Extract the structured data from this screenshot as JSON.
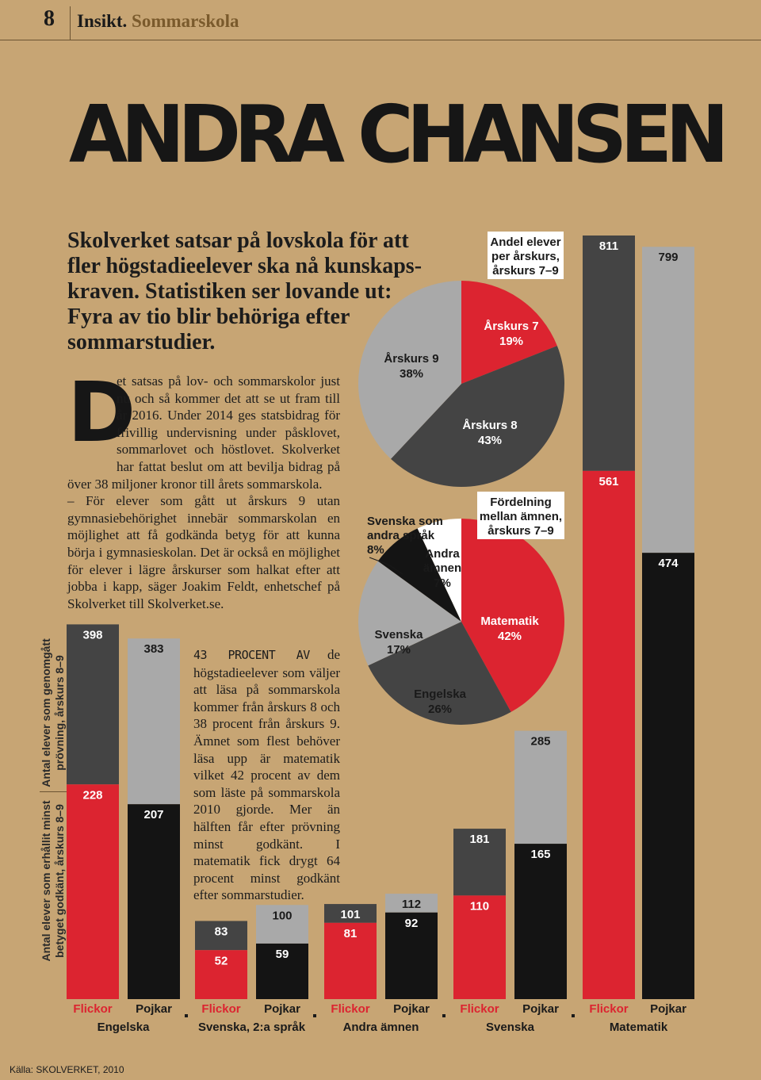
{
  "header": {
    "page_number": "8",
    "section": "Insikt.",
    "subsection": "Sommarskola"
  },
  "title": "ANDRA CHANSEN",
  "lead": "Skolverket satsar på lovskola för att fler högstadieelever ska nå kunskaps-kraven. Statistiken ser lovande ut: Fyra av tio blir behöriga efter sommarstudier.",
  "body": {
    "drop_cap": "D",
    "p1": "et satsas på lov- och sommarskolor just nu och så kommer det att se ut fram till år 2016. Under 2014 ges statsbidrag för frivillig undervisning under påsklovet, sommarlovet och höstlovet. Skolverket har fattat beslut om att bevilja bidrag på över 38 miljoner kronor till årets sommarskola.",
    "p2": "– För elever som gått ut årskurs 9 utan gymnasiebehörighet innebär sommarskolan en möjlighet att få godkända betyg för att kunna börja i gymnasieskolan. Det är också en möjlighet för elever i lägre årskurser som halkat efter att jobba i kapp, säger Joakim Feldt, enhetschef på Skolverket till Skolverket.se.",
    "p3_caps": "43 PROCENT AV",
    "p3": " de högstadieelever som väljer att läsa på sommarskola kommer från årskurs 8 och 38 procent från årskurs 9. Ämnet som flest behöver läsa upp är matematik vilket 42 procent av dem som läste på sommarskola 2010 gjorde. Mer än hälften får efter prövning minst godkänt. I matematik fick drygt 64 procent minst godkänt efter sommarstudier."
  },
  "axis_labels": {
    "top": "Antal elever som genomgått prövning, årskurs 8–9",
    "bottom": "Antal elever som erhållit minst betyget godkänt, årskurs 8–9"
  },
  "source": "Källa: SKOLVERKET, 2010",
  "colors": {
    "background": "#c7a574",
    "red": "#dc2430",
    "dark_grey": "#444444",
    "light_grey": "#a9a9a9",
    "black": "#141414",
    "white": "#ffffff"
  },
  "chart_data": [
    {
      "type": "bar",
      "title": "",
      "groups": [
        "Engelska",
        "Svenska, 2:a språk",
        "Andra ämnen",
        "Svenska",
        "Matematik"
      ],
      "genders": [
        "Flickor",
        "Pojkar"
      ],
      "series": [
        {
          "name": "Antal elever som genomgått prövning, årskurs 8–9",
          "values": [
            398,
            383,
            83,
            100,
            101,
            112,
            181,
            285,
            811,
            799
          ]
        },
        {
          "name": "Antal elever som erhållit minst betyget godkänt, årskurs 8–9",
          "values": [
            228,
            207,
            52,
            59,
            81,
            92,
            110,
            165,
            561,
            474
          ]
        }
      ],
      "ylim": [
        0,
        811
      ]
    },
    {
      "type": "pie",
      "title": "Andel elever per årskurs, årskurs 7–9",
      "labels": [
        "Årskurs 7",
        "Årskurs 8",
        "Årskurs 9"
      ],
      "percent_labels": [
        "19%",
        "43%",
        "38%"
      ],
      "values": [
        19,
        43,
        38
      ]
    },
    {
      "type": "pie",
      "title": "Fördelning mellan ämnen, årskurs 7–9",
      "labels": [
        "Matematik",
        "Engelska",
        "Svenska",
        "Svenska som andra språk",
        "Andra ämnen"
      ],
      "percent_labels": [
        "42%",
        "26%",
        "17%",
        "8%",
        "7%"
      ],
      "values": [
        42,
        26,
        17,
        8,
        7
      ]
    }
  ]
}
